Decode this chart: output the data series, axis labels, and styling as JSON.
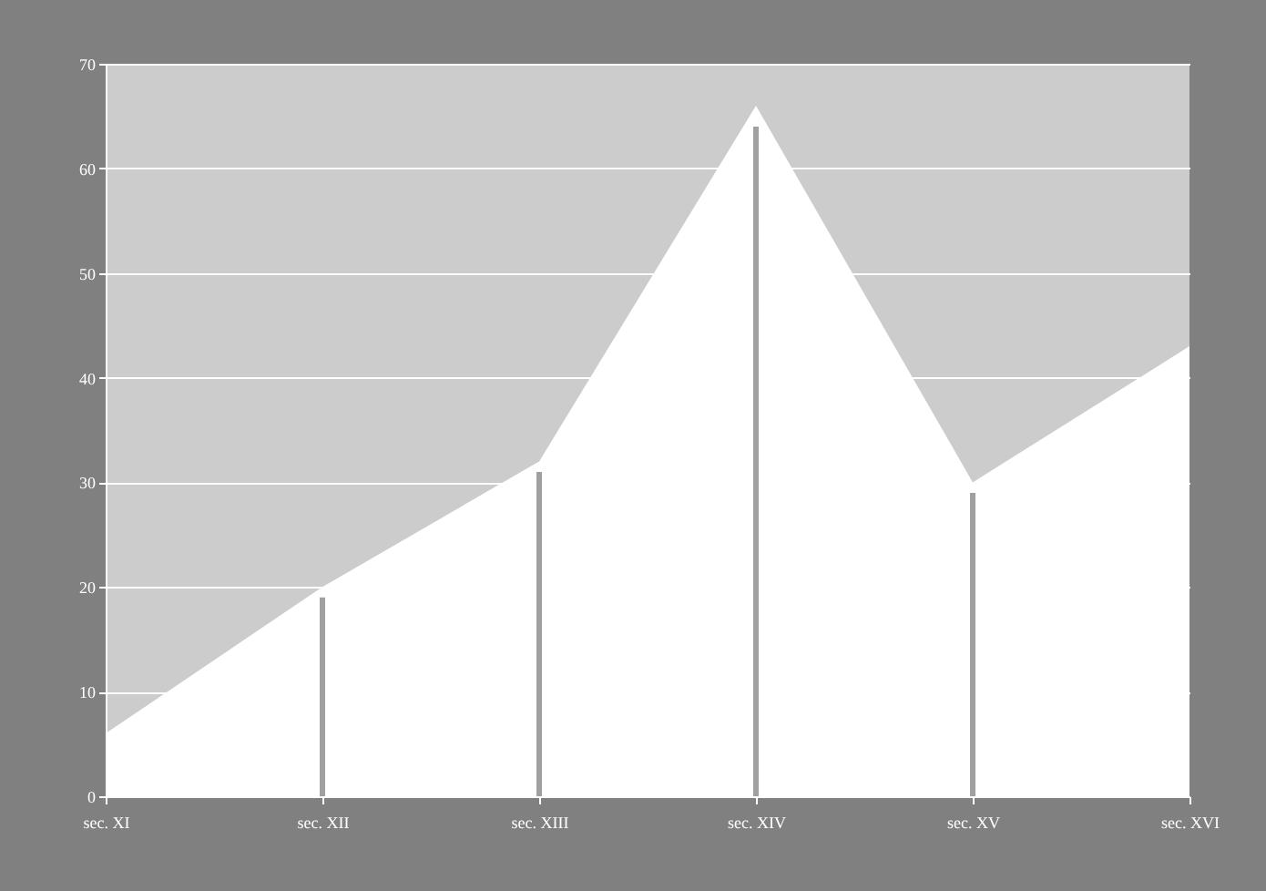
{
  "chart_data": {
    "type": "area",
    "categories": [
      "sec. XI",
      "sec. XII",
      "sec. XIII",
      "sec. XIV",
      "sec. XV",
      "sec. XVI"
    ],
    "series": [
      {
        "color": "#ffffff",
        "values": [
          6,
          20,
          32,
          66,
          30,
          43
        ]
      },
      {
        "type": "bar",
        "color": "#a0a0a0",
        "values": [
          null,
          19,
          31,
          64,
          29,
          null
        ]
      }
    ],
    "ylim": [
      0,
      70
    ],
    "yticks": [
      0,
      10,
      20,
      30,
      40,
      50,
      60,
      70
    ],
    "grid": "y"
  }
}
